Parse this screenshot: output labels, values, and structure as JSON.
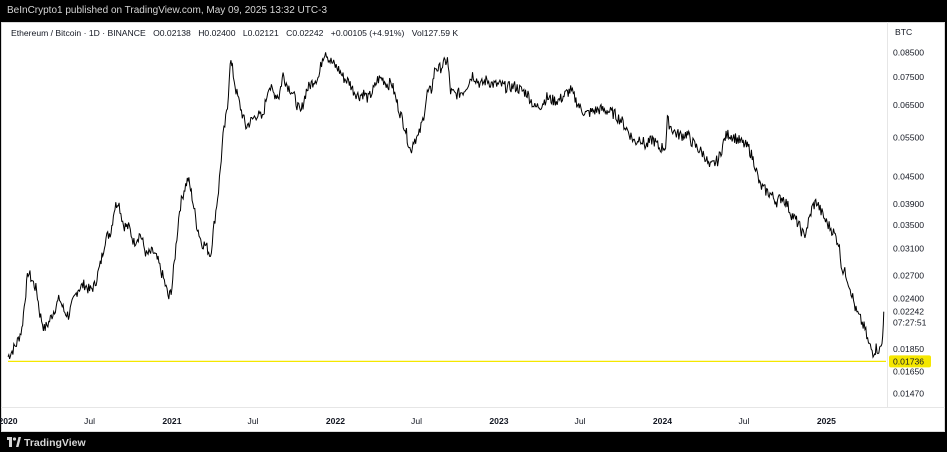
{
  "top_bar": {
    "text": "BeInCrypto1 published on TradingView.com, May 09, 2025 13:32 UTC-3"
  },
  "header": {
    "symbol": "Ethereum / Bitcoin · 1D · BINANCE",
    "open": "O0.02138",
    "high": "H0.02400",
    "low": "L0.02121",
    "close": "C0.02242",
    "change": "+0.00105 (+4.91%)",
    "volume": "Vol127.59 K",
    "currency": "BTC"
  },
  "footer": {
    "brand": "TradingView",
    "logo_icon": "tradingview-logo-icon"
  },
  "chart_data": {
    "type": "line",
    "y_scale": "log",
    "ylim": [
      0.0138,
      0.0985
    ],
    "yticks": [
      "0.08500",
      "0.07500",
      "0.06500",
      "0.05500",
      "0.04500",
      "0.03900",
      "0.03500",
      "0.03100",
      "0.02700",
      "0.02400",
      "0.01850",
      "0.01650",
      "0.01470"
    ],
    "xticks": [
      {
        "label": "2020",
        "date": "2020-01-01",
        "bold": true
      },
      {
        "label": "Jul",
        "date": "2020-07-01",
        "bold": false
      },
      {
        "label": "2021",
        "date": "2021-01-01",
        "bold": true
      },
      {
        "label": "Jul",
        "date": "2021-07-01",
        "bold": false
      },
      {
        "label": "2022",
        "date": "2022-01-01",
        "bold": true
      },
      {
        "label": "Jul",
        "date": "2022-07-01",
        "bold": false
      },
      {
        "label": "2023",
        "date": "2023-01-01",
        "bold": true
      },
      {
        "label": "Jul",
        "date": "2023-07-01",
        "bold": false
      },
      {
        "label": "2024",
        "date": "2024-01-01",
        "bold": true
      },
      {
        "label": "Jul",
        "date": "2024-07-01",
        "bold": false
      },
      {
        "label": "2025",
        "date": "2025-01-01",
        "bold": true
      }
    ],
    "last_price": {
      "value": 0.02242,
      "label": "0.02242",
      "countdown": "07:27:51"
    },
    "support_line": {
      "value": 0.01736,
      "label": "0.01736",
      "color": "#f5e700"
    },
    "series": [
      {
        "color": "#000000",
        "points": [
          [
            "2020-01-01",
            0.0178
          ],
          [
            "2020-01-10",
            0.0183
          ],
          [
            "2020-01-20",
            0.019
          ],
          [
            "2020-02-01",
            0.0205
          ],
          [
            "2020-02-08",
            0.024
          ],
          [
            "2020-02-15",
            0.0275
          ],
          [
            "2020-02-25",
            0.0262
          ],
          [
            "2020-03-05",
            0.025
          ],
          [
            "2020-03-12",
            0.0222
          ],
          [
            "2020-03-22",
            0.0205
          ],
          [
            "2020-04-01",
            0.0212
          ],
          [
            "2020-04-12",
            0.0225
          ],
          [
            "2020-04-25",
            0.024
          ],
          [
            "2020-05-05",
            0.0225
          ],
          [
            "2020-05-15",
            0.022
          ],
          [
            "2020-05-25",
            0.0235
          ],
          [
            "2020-06-05",
            0.0252
          ],
          [
            "2020-06-20",
            0.0258
          ],
          [
            "2020-07-01",
            0.025
          ],
          [
            "2020-07-12",
            0.0256
          ],
          [
            "2020-07-25",
            0.0285
          ],
          [
            "2020-08-05",
            0.0325
          ],
          [
            "2020-08-18",
            0.034
          ],
          [
            "2020-08-25",
            0.038
          ],
          [
            "2020-09-03",
            0.0398
          ],
          [
            "2020-09-15",
            0.035
          ],
          [
            "2020-09-28",
            0.0345
          ],
          [
            "2020-10-08",
            0.032
          ],
          [
            "2020-10-22",
            0.0335
          ],
          [
            "2020-11-05",
            0.03
          ],
          [
            "2020-11-20",
            0.0305
          ],
          [
            "2020-12-01",
            0.029
          ],
          [
            "2020-12-15",
            0.0262
          ],
          [
            "2020-12-25",
            0.024
          ],
          [
            "2021-01-01",
            0.0255
          ],
          [
            "2021-01-08",
            0.03
          ],
          [
            "2021-01-18",
            0.038
          ],
          [
            "2021-01-28",
            0.042
          ],
          [
            "2021-02-06",
            0.0445
          ],
          [
            "2021-02-15",
            0.0405
          ],
          [
            "2021-02-25",
            0.0352
          ],
          [
            "2021-03-08",
            0.032
          ],
          [
            "2021-03-18",
            0.0315
          ],
          [
            "2021-03-28",
            0.03
          ],
          [
            "2021-04-05",
            0.035
          ],
          [
            "2021-04-15",
            0.042
          ],
          [
            "2021-04-25",
            0.055
          ],
          [
            "2021-05-05",
            0.064
          ],
          [
            "2021-05-11",
            0.082
          ],
          [
            "2021-05-16",
            0.078
          ],
          [
            "2021-05-24",
            0.07
          ],
          [
            "2021-06-05",
            0.063
          ],
          [
            "2021-06-15",
            0.058
          ],
          [
            "2021-06-28",
            0.06
          ],
          [
            "2021-07-10",
            0.062
          ],
          [
            "2021-07-22",
            0.0605
          ],
          [
            "2021-08-05",
            0.072
          ],
          [
            "2021-08-15",
            0.069
          ],
          [
            "2021-08-28",
            0.068
          ],
          [
            "2021-09-06",
            0.076
          ],
          [
            "2021-09-15",
            0.072
          ],
          [
            "2021-09-25",
            0.07
          ],
          [
            "2021-10-05",
            0.066
          ],
          [
            "2021-10-15",
            0.062
          ],
          [
            "2021-10-28",
            0.07
          ],
          [
            "2021-11-06",
            0.072
          ],
          [
            "2021-11-15",
            0.074
          ],
          [
            "2021-11-25",
            0.075
          ],
          [
            "2021-12-03",
            0.083
          ],
          [
            "2021-12-10",
            0.086
          ],
          [
            "2021-12-18",
            0.082
          ],
          [
            "2021-12-28",
            0.08
          ],
          [
            "2022-01-08",
            0.078
          ],
          [
            "2022-01-20",
            0.0745
          ],
          [
            "2022-02-01",
            0.073
          ],
          [
            "2022-02-10",
            0.07
          ],
          [
            "2022-02-22",
            0.068
          ],
          [
            "2022-03-05",
            0.069
          ],
          [
            "2022-03-15",
            0.067
          ],
          [
            "2022-03-28",
            0.0705
          ],
          [
            "2022-04-05",
            0.074
          ],
          [
            "2022-04-15",
            0.0745
          ],
          [
            "2022-04-28",
            0.072
          ],
          [
            "2022-05-06",
            0.073
          ],
          [
            "2022-05-15",
            0.0675
          ],
          [
            "2022-05-25",
            0.0625
          ],
          [
            "2022-06-05",
            0.058
          ],
          [
            "2022-06-12",
            0.054
          ],
          [
            "2022-06-18",
            0.051
          ],
          [
            "2022-06-25",
            0.0545
          ],
          [
            "2022-07-05",
            0.055
          ],
          [
            "2022-07-15",
            0.06
          ],
          [
            "2022-07-25",
            0.069
          ],
          [
            "2022-08-03",
            0.07
          ],
          [
            "2022-08-12",
            0.079
          ],
          [
            "2022-08-20",
            0.078
          ],
          [
            "2022-08-30",
            0.08
          ],
          [
            "2022-09-08",
            0.082
          ],
          [
            "2022-09-15",
            0.0695
          ],
          [
            "2022-09-25",
            0.0685
          ],
          [
            "2022-10-05",
            0.069
          ],
          [
            "2022-10-15",
            0.07
          ],
          [
            "2022-10-25",
            0.073
          ],
          [
            "2022-11-03",
            0.076
          ],
          [
            "2022-11-12",
            0.074
          ],
          [
            "2022-11-22",
            0.072
          ],
          [
            "2022-12-05",
            0.074
          ],
          [
            "2022-12-15",
            0.0725
          ],
          [
            "2022-12-25",
            0.072
          ],
          [
            "2023-01-05",
            0.072
          ],
          [
            "2023-01-20",
            0.071
          ],
          [
            "2023-02-05",
            0.0715
          ],
          [
            "2023-02-20",
            0.07
          ],
          [
            "2023-03-05",
            0.069
          ],
          [
            "2023-03-12",
            0.067
          ],
          [
            "2023-03-22",
            0.064
          ],
          [
            "2023-04-05",
            0.065
          ],
          [
            "2023-04-18",
            0.0675
          ],
          [
            "2023-05-01",
            0.0665
          ],
          [
            "2023-05-15",
            0.0665
          ],
          [
            "2023-06-01",
            0.069
          ],
          [
            "2023-06-10",
            0.07
          ],
          [
            "2023-06-20",
            0.067
          ],
          [
            "2023-07-01",
            0.064
          ],
          [
            "2023-07-15",
            0.062
          ],
          [
            "2023-08-01",
            0.063
          ],
          [
            "2023-08-15",
            0.0635
          ],
          [
            "2023-09-01",
            0.063
          ],
          [
            "2023-09-15",
            0.062
          ],
          [
            "2023-10-01",
            0.06
          ],
          [
            "2023-10-15",
            0.057
          ],
          [
            "2023-11-01",
            0.0535
          ],
          [
            "2023-11-12",
            0.055
          ],
          [
            "2023-11-25",
            0.0525
          ],
          [
            "2023-12-10",
            0.0545
          ],
          [
            "2023-12-25",
            0.052
          ],
          [
            "2024-01-08",
            0.0525
          ],
          [
            "2024-01-12",
            0.06
          ],
          [
            "2024-01-22",
            0.0575
          ],
          [
            "2024-02-01",
            0.056
          ],
          [
            "2024-02-12",
            0.0555
          ],
          [
            "2024-02-25",
            0.056
          ],
          [
            "2024-03-05",
            0.054
          ],
          [
            "2024-03-15",
            0.0525
          ],
          [
            "2024-03-28",
            0.051
          ],
          [
            "2024-04-05",
            0.05
          ],
          [
            "2024-04-15",
            0.047
          ],
          [
            "2024-04-25",
            0.048
          ],
          [
            "2024-05-05",
            0.049
          ],
          [
            "2024-05-20",
            0.055
          ],
          [
            "2024-05-28",
            0.056
          ],
          [
            "2024-06-10",
            0.055
          ],
          [
            "2024-06-20",
            0.054
          ],
          [
            "2024-07-01",
            0.053
          ],
          [
            "2024-07-12",
            0.052
          ],
          [
            "2024-07-25",
            0.048
          ],
          [
            "2024-08-05",
            0.043
          ],
          [
            "2024-08-15",
            0.042
          ],
          [
            "2024-08-30",
            0.041
          ],
          [
            "2024-09-12",
            0.0395
          ],
          [
            "2024-09-25",
            0.0405
          ],
          [
            "2024-10-05",
            0.039
          ],
          [
            "2024-10-15",
            0.037
          ],
          [
            "2024-10-28",
            0.0355
          ],
          [
            "2024-11-06",
            0.034
          ],
          [
            "2024-11-12",
            0.033
          ],
          [
            "2024-11-22",
            0.0355
          ],
          [
            "2024-12-01",
            0.0385
          ],
          [
            "2024-12-10",
            0.0395
          ],
          [
            "2024-12-20",
            0.0375
          ],
          [
            "2025-01-01",
            0.0355
          ],
          [
            "2025-01-15",
            0.034
          ],
          [
            "2025-01-28",
            0.032
          ],
          [
            "2025-02-05",
            0.028
          ],
          [
            "2025-02-15",
            0.027
          ],
          [
            "2025-02-25",
            0.025
          ],
          [
            "2025-03-08",
            0.0225
          ],
          [
            "2025-03-18",
            0.0215
          ],
          [
            "2025-03-28",
            0.0205
          ],
          [
            "2025-04-05",
            0.019
          ],
          [
            "2025-04-15",
            0.0182
          ],
          [
            "2025-04-22",
            0.0186
          ],
          [
            "2025-04-30",
            0.0184
          ],
          [
            "2025-05-05",
            0.019
          ],
          [
            "2025-05-08",
            0.0214
          ],
          [
            "2025-05-09",
            0.02242
          ]
        ]
      }
    ]
  }
}
